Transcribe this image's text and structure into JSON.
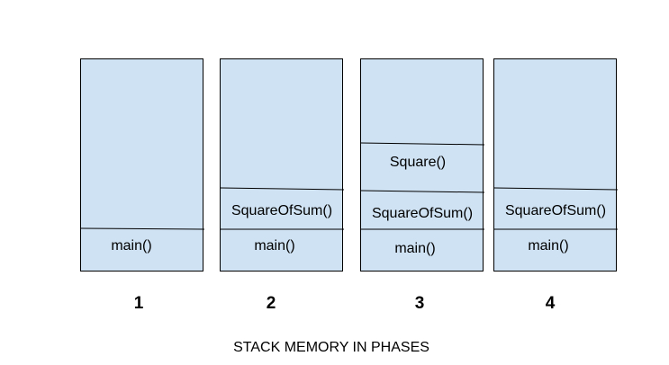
{
  "title": "STACK MEMORY IN PHASES",
  "phases": [
    {
      "number": "1",
      "frames": [
        "main()"
      ]
    },
    {
      "number": "2",
      "frames": [
        "main()",
        "SquareOfSum()"
      ]
    },
    {
      "number": "3",
      "frames": [
        "main()",
        "SquareOfSum()",
        "Square()"
      ]
    },
    {
      "number": "4",
      "frames": [
        "main()",
        "SquareOfSum()"
      ]
    }
  ]
}
